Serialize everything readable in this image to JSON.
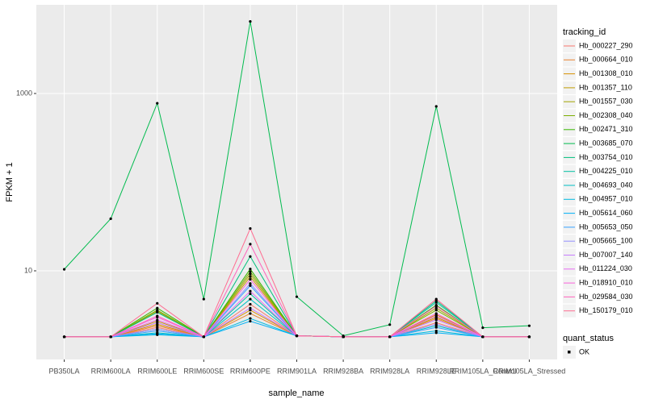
{
  "chart_data": {
    "type": "line",
    "x_label": "sample_name",
    "y_label": "FPKM + 1",
    "categories": [
      "PB350LA",
      "RRIM600LA",
      "RRIM600LE",
      "RRIM600SE",
      "RRIM600PE",
      "RRIM901LA",
      "RRIM928BA",
      "RRIM928LA",
      "RRIM928LE",
      "RRIM105LA_Control",
      "RRIM105LA_Stressed"
    ],
    "ylim": [
      1,
      10000
    ],
    "yticks": [
      10,
      1000
    ],
    "log_y": true,
    "grid": true,
    "legend_title": "tracking_id",
    "legend_position": "right",
    "point_legend_title": "quant_status",
    "point_legend_label": "OK",
    "point_color": "#000000",
    "series": [
      {
        "name": "Hb_000227_290",
        "color": "#F8766D",
        "values": [
          1.8,
          1.8,
          2.3,
          1.8,
          4.2,
          1.85,
          1.8,
          1.8,
          2.6,
          1.8,
          1.8
        ]
      },
      {
        "name": "Hb_000664_010",
        "color": "#EA8331",
        "values": [
          1.8,
          1.8,
          2.4,
          1.8,
          3.3,
          1.85,
          1.8,
          1.8,
          2.9,
          1.8,
          1.8
        ]
      },
      {
        "name": "Hb_001308_010",
        "color": "#D89000",
        "values": [
          1.8,
          1.8,
          2.5,
          1.8,
          3.6,
          1.85,
          1.8,
          1.8,
          3.2,
          1.8,
          1.8
        ]
      },
      {
        "name": "Hb_001357_110",
        "color": "#C09B00",
        "values": [
          1.8,
          1.8,
          2.7,
          1.8,
          8.6,
          1.85,
          1.8,
          1.8,
          3.0,
          1.8,
          1.8
        ]
      },
      {
        "name": "Hb_001557_030",
        "color": "#A3A500",
        "values": [
          1.8,
          1.8,
          3.5,
          1.8,
          9.2,
          1.85,
          1.8,
          1.8,
          3.8,
          1.8,
          1.8
        ]
      },
      {
        "name": "Hb_002308_040",
        "color": "#7CAE00",
        "values": [
          1.8,
          1.8,
          3.6,
          1.8,
          9.8,
          1.85,
          1.8,
          1.8,
          3.6,
          1.8,
          1.8
        ]
      },
      {
        "name": "Hb_002471_310",
        "color": "#39B600",
        "values": [
          1.8,
          1.8,
          3.8,
          1.8,
          10.5,
          1.85,
          1.8,
          1.8,
          4.1,
          1.8,
          1.8
        ]
      },
      {
        "name": "Hb_003685_070",
        "color": "#00BB4E",
        "values": [
          10.4,
          38.7,
          776,
          4.8,
          6500,
          5.1,
          1.85,
          2.47,
          716,
          2.28,
          2.4
        ]
      },
      {
        "name": "Hb_003754_010",
        "color": "#00BF7D",
        "values": [
          1.8,
          1.8,
          3.4,
          1.8,
          14.5,
          1.85,
          1.8,
          1.8,
          4.6,
          1.8,
          1.8
        ]
      },
      {
        "name": "Hb_004225_010",
        "color": "#00C1A3",
        "values": [
          1.8,
          1.8,
          2.2,
          1.8,
          5.5,
          1.85,
          1.8,
          1.8,
          4.4,
          1.8,
          1.8
        ]
      },
      {
        "name": "Hb_004693_040",
        "color": "#00BFC4",
        "values": [
          1.8,
          1.8,
          2.0,
          1.8,
          4.8,
          1.85,
          1.8,
          1.8,
          2.4,
          1.8,
          1.8
        ]
      },
      {
        "name": "Hb_004957_010",
        "color": "#00BAE0",
        "values": [
          1.8,
          1.8,
          1.9,
          1.8,
          2.9,
          1.85,
          1.8,
          1.8,
          2.1,
          1.8,
          1.8
        ]
      },
      {
        "name": "Hb_005614_060",
        "color": "#00B0F6",
        "values": [
          1.8,
          1.8,
          1.95,
          1.8,
          2.7,
          1.85,
          1.8,
          1.8,
          2.0,
          1.8,
          1.8
        ]
      },
      {
        "name": "Hb_005653_050",
        "color": "#35A2FF",
        "values": [
          1.8,
          1.8,
          2.1,
          1.8,
          6.8,
          1.85,
          1.8,
          1.8,
          2.3,
          1.8,
          1.8
        ]
      },
      {
        "name": "Hb_005665_100",
        "color": "#9590FF",
        "values": [
          1.8,
          1.8,
          2.2,
          1.8,
          7.2,
          1.85,
          1.8,
          1.8,
          2.5,
          1.8,
          1.8
        ]
      },
      {
        "name": "Hb_007007_140",
        "color": "#C77CFF",
        "values": [
          1.8,
          1.8,
          2.6,
          1.8,
          3.8,
          1.85,
          1.8,
          1.8,
          2.8,
          1.8,
          1.8
        ]
      },
      {
        "name": "Hb_011224_030",
        "color": "#E76BF3",
        "values": [
          1.8,
          1.8,
          2.8,
          1.8,
          5.9,
          1.85,
          1.8,
          1.8,
          3.1,
          1.8,
          1.8
        ]
      },
      {
        "name": "Hb_018910_010",
        "color": "#FA62DB",
        "values": [
          1.8,
          1.8,
          3.0,
          1.8,
          8.0,
          1.85,
          1.8,
          1.8,
          3.3,
          1.8,
          1.8
        ]
      },
      {
        "name": "Hb_029584_030",
        "color": "#FF62BC",
        "values": [
          1.8,
          1.8,
          3.1,
          1.8,
          20,
          1.85,
          1.8,
          1.8,
          4.0,
          1.8,
          1.8
        ]
      },
      {
        "name": "Hb_150179_010",
        "color": "#FF6C91",
        "values": [
          1.8,
          1.8,
          4.3,
          1.8,
          30,
          1.85,
          1.8,
          1.8,
          4.8,
          1.8,
          1.8
        ]
      }
    ]
  }
}
